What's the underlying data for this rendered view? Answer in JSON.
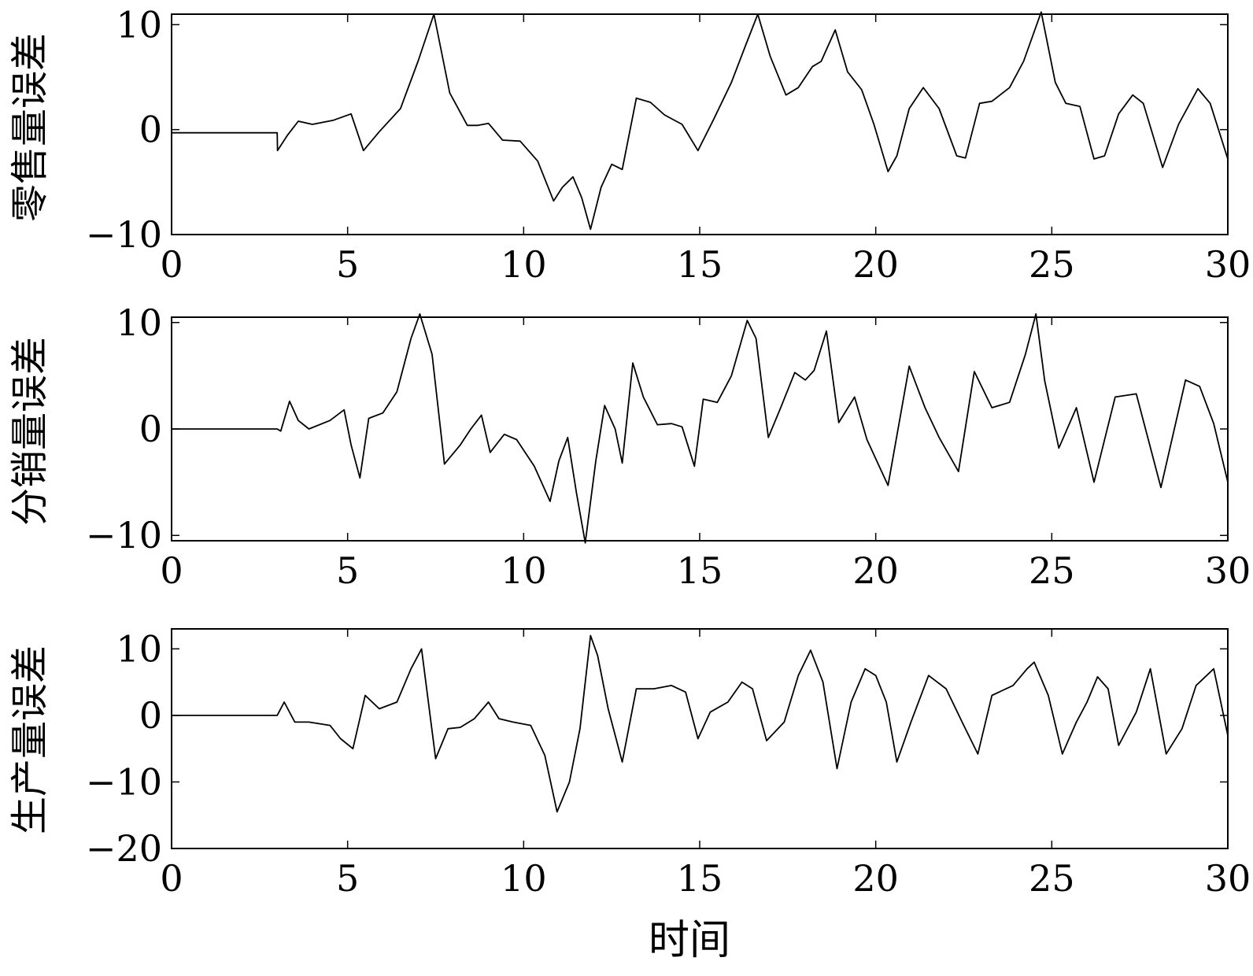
{
  "chart_data": [
    {
      "type": "line",
      "ylabel": "零售量误差",
      "xlabel": "",
      "xlim": [
        0,
        30
      ],
      "ylim": [
        -10,
        11
      ],
      "xticks": [
        0,
        5,
        10,
        15,
        20,
        25,
        30
      ],
      "yticks": [
        -10,
        0,
        10
      ],
      "xtick_labels": [
        "0",
        "5",
        "10",
        "15",
        "20",
        "25",
        "30"
      ],
      "ytick_labels": [
        "−10",
        "0",
        "10"
      ],
      "grid": false,
      "series": [
        {
          "x": [
            0,
            3.0,
            3.01,
            3.3,
            3.6,
            4.0,
            4.6,
            5.1,
            5.45,
            5.9,
            6.5,
            7.0,
            7.45,
            7.9,
            8.4,
            8.7,
            9.0,
            9.4,
            9.9,
            10.4,
            10.85,
            11.1,
            11.4,
            11.65,
            11.9,
            12.2,
            12.5,
            12.8,
            13.2,
            13.6,
            14.0,
            14.5,
            14.95,
            15.4,
            15.9,
            16.3,
            16.65,
            17.0,
            17.45,
            17.8,
            18.2,
            18.45,
            18.85,
            19.2,
            19.6,
            19.95,
            20.35,
            20.6,
            20.95,
            21.35,
            21.8,
            22.3,
            22.55,
            22.95,
            23.3,
            23.8,
            24.2,
            24.7,
            25.1,
            25.4,
            25.8,
            26.2,
            26.5,
            26.9,
            27.3,
            27.6,
            28.15,
            28.6,
            29.15,
            29.5,
            30.0
          ],
          "y": [
            -0.3,
            -0.3,
            -2.0,
            -0.5,
            0.8,
            0.5,
            0.9,
            1.5,
            -2.0,
            -0.2,
            2.0,
            6.5,
            11.0,
            3.5,
            0.4,
            0.4,
            0.6,
            -1.0,
            -1.1,
            -3.0,
            -6.8,
            -5.5,
            -4.5,
            -6.5,
            -9.5,
            -5.5,
            -3.3,
            -3.8,
            3.0,
            2.6,
            1.4,
            0.5,
            -2.0,
            1.0,
            4.5,
            8.0,
            11.0,
            7.0,
            3.3,
            4.0,
            6.0,
            6.5,
            9.5,
            5.5,
            3.8,
            0.5,
            -4.0,
            -2.5,
            2.0,
            4.0,
            2.0,
            -2.5,
            -2.7,
            2.5,
            2.7,
            4.0,
            6.5,
            11.2,
            4.5,
            2.5,
            2.2,
            -2.8,
            -2.5,
            1.5,
            3.3,
            2.5,
            -3.6,
            0.5,
            3.9,
            2.5,
            -2.8
          ]
        }
      ]
    },
    {
      "type": "line",
      "ylabel": "分销量误差",
      "xlabel": "",
      "xlim": [
        0,
        30
      ],
      "ylim": [
        -10.5,
        10.5
      ],
      "xticks": [
        0,
        5,
        10,
        15,
        20,
        25,
        30
      ],
      "yticks": [
        -10,
        0,
        10
      ],
      "xtick_labels": [
        "0",
        "5",
        "10",
        "15",
        "20",
        "25",
        "30"
      ],
      "ytick_labels": [
        "−10",
        "0",
        "10"
      ],
      "grid": false,
      "series": [
        {
          "x": [
            0,
            3.0,
            3.1,
            3.35,
            3.6,
            3.9,
            4.5,
            4.9,
            5.1,
            5.35,
            5.6,
            6.0,
            6.4,
            6.8,
            7.05,
            7.4,
            7.75,
            8.2,
            8.5,
            8.8,
            9.05,
            9.45,
            9.8,
            10.3,
            10.75,
            11.0,
            11.25,
            11.5,
            11.75,
            12.05,
            12.3,
            12.6,
            12.8,
            13.1,
            13.4,
            13.8,
            14.2,
            14.5,
            14.85,
            15.1,
            15.5,
            15.9,
            16.35,
            16.6,
            16.95,
            17.3,
            17.7,
            18.0,
            18.25,
            18.6,
            18.95,
            19.4,
            19.75,
            20.35,
            20.95,
            21.4,
            21.8,
            22.35,
            22.8,
            23.3,
            23.8,
            24.25,
            24.55,
            24.8,
            25.2,
            25.7,
            26.2,
            26.8,
            27.4,
            28.1,
            28.8,
            29.2,
            29.6,
            30.0
          ],
          "y": [
            0,
            0,
            -0.2,
            2.6,
            0.8,
            0,
            0.8,
            1.8,
            -1.5,
            -4.6,
            1.0,
            1.5,
            3.5,
            8.5,
            10.8,
            7.0,
            -3.3,
            -1.5,
            0,
            1.3,
            -2.2,
            -0.5,
            -1.0,
            -3.5,
            -6.8,
            -3.0,
            -0.8,
            -6.0,
            -10.7,
            -3.0,
            2.2,
            0,
            -3.2,
            6.2,
            3.0,
            0.4,
            0.5,
            0.2,
            -3.5,
            2.8,
            2.5,
            5.0,
            10.2,
            8.5,
            -0.8,
            2.0,
            5.3,
            4.6,
            5.5,
            9.2,
            0.6,
            3.0,
            -1.0,
            -5.3,
            5.9,
            2.0,
            -0.8,
            -4.0,
            5.4,
            2.0,
            2.5,
            7.0,
            10.8,
            4.5,
            -1.8,
            2.0,
            -5.0,
            3.0,
            3.3,
            -5.5,
            4.6,
            4.0,
            0.5,
            -5.0
          ]
        }
      ]
    },
    {
      "type": "line",
      "ylabel": "生产量误差",
      "xlabel": "时间",
      "xlim": [
        0,
        30
      ],
      "ylim": [
        -20,
        13
      ],
      "xticks": [
        0,
        5,
        10,
        15,
        20,
        25,
        30
      ],
      "yticks": [
        -20,
        -10,
        0,
        10
      ],
      "xtick_labels": [
        "0",
        "5",
        "10",
        "15",
        "20",
        "25",
        "30"
      ],
      "ytick_labels": [
        "−20",
        "−10",
        "0",
        "10"
      ],
      "grid": false,
      "series": [
        {
          "x": [
            0,
            3.0,
            3.2,
            3.5,
            3.9,
            4.5,
            4.8,
            5.15,
            5.5,
            5.9,
            6.4,
            6.8,
            7.1,
            7.5,
            7.85,
            8.2,
            8.6,
            9.0,
            9.3,
            9.7,
            10.2,
            10.6,
            10.95,
            11.3,
            11.6,
            11.9,
            12.1,
            12.4,
            12.8,
            13.2,
            13.7,
            14.2,
            14.6,
            14.95,
            15.3,
            15.8,
            16.2,
            16.5,
            16.9,
            17.4,
            17.8,
            18.15,
            18.5,
            18.9,
            19.3,
            19.7,
            20.0,
            20.3,
            20.6,
            21.0,
            21.5,
            22.0,
            22.5,
            22.9,
            23.3,
            23.9,
            24.3,
            24.5,
            24.9,
            25.3,
            25.7,
            26.0,
            26.3,
            26.6,
            26.9,
            27.4,
            27.8,
            28.25,
            28.7,
            29.1,
            29.6,
            30.0
          ],
          "y": [
            0,
            0,
            2.0,
            -1.0,
            -1.0,
            -1.5,
            -3.5,
            -5.0,
            3.0,
            1.0,
            2.0,
            7.0,
            10.0,
            -6.5,
            -2.0,
            -1.8,
            -0.5,
            2.0,
            -0.5,
            -1.0,
            -1.5,
            -6.0,
            -14.5,
            -10.0,
            -2.0,
            12.0,
            9.0,
            1.0,
            -7.0,
            4.0,
            4.0,
            4.5,
            3.5,
            -3.5,
            0.5,
            2.0,
            5.0,
            4.0,
            -3.8,
            -1.0,
            6.0,
            9.8,
            5.0,
            -8.0,
            2.0,
            7.0,
            6.0,
            2.0,
            -7.0,
            -1.0,
            6.0,
            4.0,
            -1.5,
            -5.8,
            3.0,
            4.5,
            7.0,
            8.0,
            3.0,
            -5.8,
            -1.0,
            2.0,
            5.8,
            4.0,
            -4.5,
            0.5,
            7.0,
            -5.8,
            -2.0,
            4.5,
            7.0,
            -3.0
          ]
        }
      ]
    }
  ]
}
